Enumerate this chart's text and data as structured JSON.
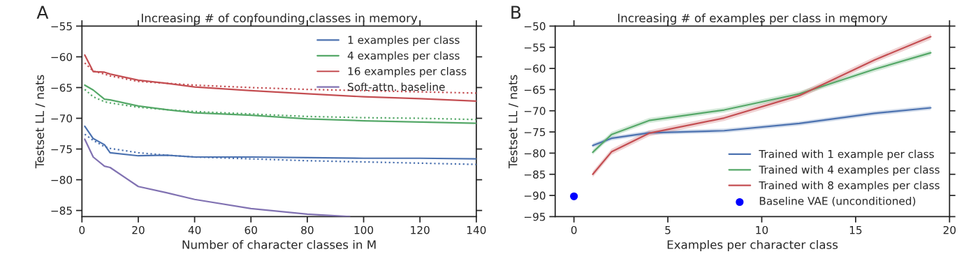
{
  "chart_data": [
    {
      "type": "line",
      "title": "Increasing # of confounding classes in memory",
      "xlabel": "Number of character classes in M",
      "ylabel": "Testset LL / nats",
      "annotations": [
        "A"
      ],
      "xlim": [
        0,
        140
      ],
      "xticks": [
        0,
        20,
        40,
        60,
        80,
        100,
        120,
        140
      ],
      "ylim": [
        -86,
        -55
      ],
      "yticks": [
        {
          "value": -55,
          "label": "−55"
        },
        {
          "value": -60,
          "label": "−60"
        },
        {
          "value": -65,
          "label": "−65"
        },
        {
          "value": -70,
          "label": "−70"
        },
        {
          "value": -75,
          "label": "−75"
        },
        {
          "value": -80,
          "label": "−80"
        },
        {
          "value": -85,
          "label": "−85"
        }
      ],
      "legend": "top right",
      "grid": false,
      "series": [
        {
          "name": "1 examples per class",
          "color": "#4c72b0",
          "line_style": "solid",
          "x": [
            1,
            4,
            8,
            10,
            20,
            30,
            40,
            60,
            80,
            100,
            120,
            140
          ],
          "values": [
            -71.3,
            -73.3,
            -74.3,
            -75.6,
            -76.1,
            -76.0,
            -76.3,
            -76.3,
            -76.4,
            -76.5,
            -76.5,
            -76.6
          ]
        },
        {
          "name": "4 examples per class",
          "color": "#55a868",
          "line_style": "solid",
          "x": [
            1,
            4,
            8,
            10,
            20,
            30,
            40,
            60,
            80,
            100,
            120,
            140
          ],
          "values": [
            -64.6,
            -65.4,
            -66.9,
            -67.0,
            -68.0,
            -68.6,
            -69.1,
            -69.5,
            -70.1,
            -70.4,
            -70.6,
            -70.8
          ]
        },
        {
          "name": "16 examples per class",
          "color": "#c44e52",
          "line_style": "solid",
          "x": [
            1,
            4,
            8,
            10,
            20,
            30,
            40,
            60,
            80,
            100,
            120,
            140
          ],
          "values": [
            -59.7,
            -62.4,
            -62.5,
            -62.8,
            -63.8,
            -64.3,
            -64.9,
            -65.5,
            -66.0,
            -66.5,
            -66.8,
            -67.2
          ]
        },
        {
          "name": "Soft-attn. baseline",
          "color": "#8172b2",
          "line_style": "solid",
          "x": [
            1,
            4,
            8,
            10,
            20,
            30,
            40,
            60,
            80,
            95
          ],
          "values": [
            -73.4,
            -76.3,
            -77.8,
            -78.0,
            -81.1,
            -82.1,
            -83.2,
            -84.7,
            -85.6,
            -86.0
          ]
        },
        {
          "color": "#4c72b0",
          "line_style": "dotted",
          "x": [
            1,
            4,
            8,
            10,
            20,
            30,
            40,
            60,
            80,
            100,
            120,
            140
          ],
          "values": [
            -72.6,
            -73.6,
            -74.6,
            -74.9,
            -75.6,
            -76.0,
            -76.3,
            -76.6,
            -76.9,
            -77.1,
            -77.3,
            -77.5
          ]
        },
        {
          "color": "#55a868",
          "line_style": "dotted",
          "x": [
            1,
            4,
            8,
            10,
            20,
            30,
            40,
            60,
            80,
            100,
            120,
            140
          ],
          "values": [
            -65.3,
            -66.5,
            -67.3,
            -67.5,
            -68.2,
            -68.6,
            -68.9,
            -69.3,
            -69.7,
            -69.9,
            -70.0,
            -70.2
          ]
        },
        {
          "color": "#c44e52",
          "line_style": "dotted",
          "x": [
            1,
            4,
            8,
            10,
            20,
            30,
            40,
            60,
            80,
            100,
            120,
            140
          ],
          "values": [
            -61.0,
            -62.3,
            -62.8,
            -63.1,
            -64.0,
            -64.3,
            -64.6,
            -65.0,
            -65.3,
            -65.5,
            -65.7,
            -65.9
          ]
        }
      ]
    },
    {
      "type": "line",
      "title": "Increasing # of examples per class in memory",
      "xlabel": "Examples per character class",
      "ylabel": "Testset LL / nats",
      "annotations": [
        "B"
      ],
      "xlim": [
        -1,
        20
      ],
      "xticks": [
        0,
        5,
        10,
        15,
        20
      ],
      "ylim": [
        -95,
        -50
      ],
      "yticks": [
        {
          "value": -50,
          "label": "−50"
        },
        {
          "value": -55,
          "label": "−55"
        },
        {
          "value": -60,
          "label": "−60"
        },
        {
          "value": -65,
          "label": "−65"
        },
        {
          "value": -70,
          "label": "−70"
        },
        {
          "value": -75,
          "label": "−75"
        },
        {
          "value": -80,
          "label": "−80"
        },
        {
          "value": -85,
          "label": "−85"
        },
        {
          "value": -90,
          "label": "−90"
        },
        {
          "value": -95,
          "label": "−95"
        }
      ],
      "legend": "bottom right",
      "grid": false,
      "series": [
        {
          "name": "Trained with 1 example per class",
          "color": "#4c72b0",
          "line_style": "solid",
          "x": [
            1,
            2,
            4,
            8,
            12,
            16,
            19
          ],
          "values": [
            -78.2,
            -76.5,
            -75.2,
            -74.7,
            -73.0,
            -70.6,
            -69.3
          ],
          "lower": [
            -78.7,
            -77.0,
            -75.7,
            -75.2,
            -73.5,
            -71.1,
            -69.8
          ],
          "upper": [
            -77.7,
            -76.0,
            -74.7,
            -74.2,
            -72.5,
            -70.1,
            -68.8
          ]
        },
        {
          "name": "Trained with 4 examples per class",
          "color": "#55a868",
          "line_style": "solid",
          "x": [
            1,
            2,
            4,
            8,
            12,
            16,
            19
          ],
          "values": [
            -79.8,
            -75.6,
            -72.3,
            -69.8,
            -66.0,
            -60.2,
            -56.3
          ],
          "lower": [
            -80.4,
            -76.2,
            -72.9,
            -70.4,
            -66.6,
            -60.8,
            -56.9
          ],
          "upper": [
            -79.2,
            -75.0,
            -71.7,
            -69.2,
            -65.4,
            -59.6,
            -55.7
          ]
        },
        {
          "name": "Trained with 8 examples per class",
          "color": "#c44e52",
          "line_style": "solid",
          "x": [
            1,
            2,
            4,
            8,
            12,
            16,
            19
          ],
          "values": [
            -85.0,
            -79.7,
            -75.3,
            -71.7,
            -66.4,
            -58.0,
            -52.5
          ],
          "lower": [
            -85.7,
            -80.4,
            -76.0,
            -72.4,
            -67.1,
            -58.7,
            -53.2
          ],
          "upper": [
            -84.3,
            -79.0,
            -74.6,
            -71.0,
            -65.7,
            -57.3,
            -51.8
          ]
        },
        {
          "name": "Baseline VAE (unconditioned)",
          "type": "scatter",
          "marker": "circle",
          "color": "#0000ff",
          "x": [
            0
          ],
          "values": [
            -90.2
          ]
        }
      ]
    }
  ]
}
